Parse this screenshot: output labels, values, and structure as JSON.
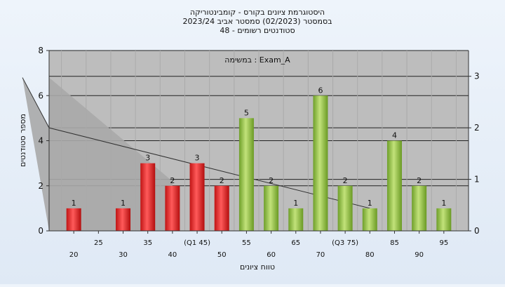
{
  "chart_data": {
    "type": "bar",
    "title_lines": [
      "היסטוגרמת ציונים בקורס - קומבינטוריקה",
      "בסמסטר  (02/2023)  סמסטר אביב 2023/24",
      "סטודנטים רשומים - 48"
    ],
    "xlabel": "טווח ציונים",
    "ylabel": "מספר סטודנטים",
    "legend_text": "במשימה : Exam_A",
    "ylim": [
      0,
      8
    ],
    "y_ticks": [
      "0",
      "2",
      "4",
      "6",
      "8"
    ],
    "y2lim": [
      0,
      3.5
    ],
    "y2_ticks": [
      "0",
      "1",
      "2",
      "3"
    ],
    "grid": true,
    "categories": [
      "20",
      "25",
      "30",
      "35",
      "40",
      "(Q1 45)",
      "50",
      "55",
      "60",
      "65",
      "70",
      "(Q3 75)",
      "80",
      "85",
      "90",
      "95"
    ],
    "values": [
      1,
      0,
      1,
      3,
      2,
      3,
      2,
      5,
      2,
      1,
      6,
      2,
      1,
      4,
      2,
      1
    ],
    "value_labels": [
      "1",
      "",
      "1",
      "3",
      "2",
      "3",
      "2",
      "5",
      "2",
      "1",
      "6",
      "2",
      "1",
      "4",
      "2",
      "1"
    ],
    "bar_colors": [
      "red",
      "red",
      "red",
      "red",
      "red",
      "red",
      "red",
      "green",
      "green",
      "green",
      "green",
      "green",
      "green",
      "green",
      "green",
      "green"
    ],
    "box_plot": {
      "q1": 45,
      "q3": 75,
      "top": 6.8,
      "left_foot": 40,
      "left_foot_value": 2.2,
      "right_foot": 80,
      "right_foot_value": 1.0,
      "whisker_right": 75,
      "whisker_right_value": 4.6
    },
    "colors": {
      "red": "#e32b2b",
      "green": "#8fc23a",
      "box": "#ffc94f",
      "plot_bg": "#bdbdbd",
      "whisker": "#a9a9a9"
    }
  }
}
